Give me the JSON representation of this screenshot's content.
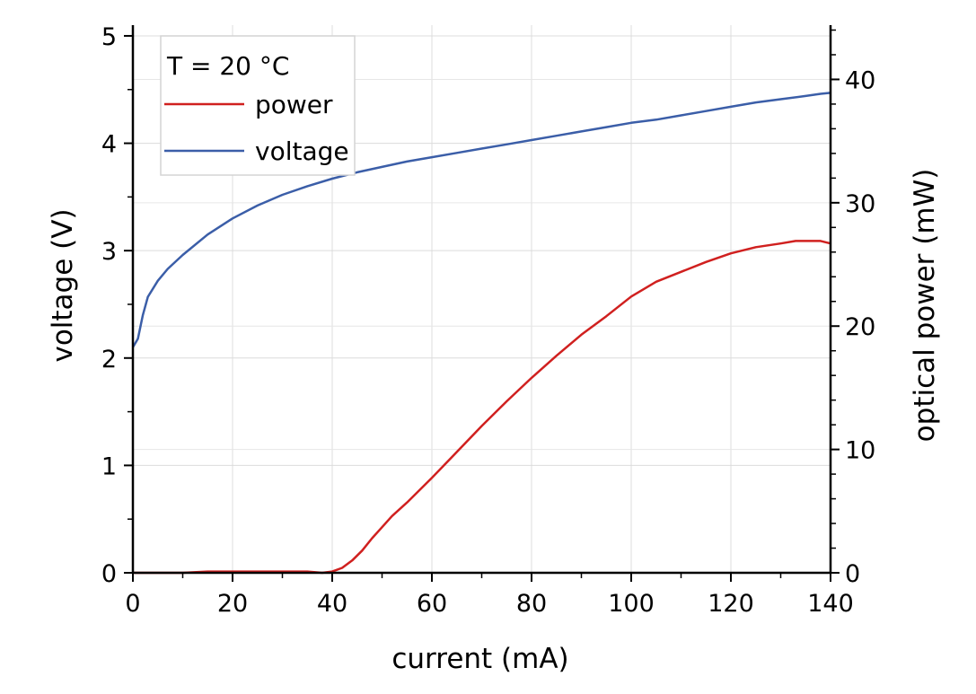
{
  "chart_data": {
    "type": "line",
    "title": "",
    "xlabel": "current (mA)",
    "ylabel_left": "voltage (V)",
    "ylabel_right": "optical power (mW)",
    "xlim": [
      0,
      140
    ],
    "ylim_left": [
      0,
      5.1
    ],
    "ylim_right": [
      0,
      44.4
    ],
    "x_ticks": [
      "0",
      "20",
      "40",
      "60",
      "80",
      "100",
      "120",
      "140"
    ],
    "y_ticks_left": [
      "0",
      "1",
      "2",
      "3",
      "4",
      "5"
    ],
    "y_ticks_right": [
      "0",
      "10",
      "20",
      "30",
      "40"
    ],
    "grid": true,
    "legend": {
      "position": "top-left",
      "title": "T = 20 °C",
      "entries": [
        "power",
        "voltage"
      ]
    },
    "series": [
      {
        "name": "power",
        "axis": "right",
        "color": "#d0201f",
        "x": [
          0,
          10,
          15,
          20,
          30,
          35,
          38,
          40,
          42,
          44,
          46,
          48,
          50,
          52,
          55,
          60,
          65,
          70,
          75,
          80,
          85,
          90,
          95,
          100,
          105,
          110,
          115,
          120,
          125,
          130,
          133,
          135,
          138,
          140
        ],
        "y": [
          0,
          0,
          0.1,
          0.1,
          0.1,
          0.1,
          0,
          0.1,
          0.4,
          1.0,
          1.8,
          2.8,
          3.7,
          4.6,
          5.7,
          7.7,
          9.8,
          11.9,
          13.9,
          15.8,
          17.6,
          19.3,
          20.8,
          22.4,
          23.6,
          24.4,
          25.2,
          25.9,
          26.4,
          26.7,
          26.9,
          26.9,
          26.9,
          26.7
        ]
      },
      {
        "name": "voltage",
        "axis": "left",
        "color": "#3b5ea8",
        "x": [
          0,
          1,
          2,
          3,
          5,
          7,
          10,
          15,
          20,
          25,
          30,
          35,
          40,
          45,
          50,
          55,
          60,
          65,
          70,
          75,
          80,
          85,
          90,
          95,
          100,
          105,
          110,
          115,
          120,
          125,
          130,
          135,
          138,
          140
        ],
        "y": [
          2.1,
          2.18,
          2.4,
          2.57,
          2.72,
          2.83,
          2.96,
          3.15,
          3.3,
          3.42,
          3.52,
          3.6,
          3.67,
          3.73,
          3.78,
          3.83,
          3.87,
          3.91,
          3.95,
          3.99,
          4.03,
          4.07,
          4.11,
          4.15,
          4.19,
          4.22,
          4.26,
          4.3,
          4.34,
          4.38,
          4.41,
          4.44,
          4.46,
          4.47
        ]
      }
    ]
  }
}
